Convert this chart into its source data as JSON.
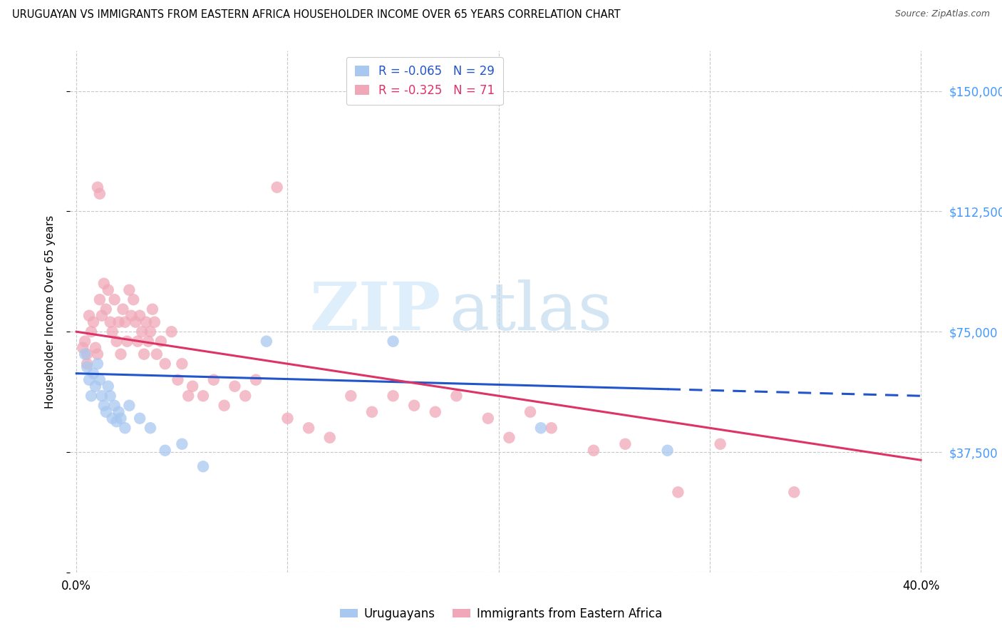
{
  "title": "URUGUAYAN VS IMMIGRANTS FROM EASTERN AFRICA HOUSEHOLDER INCOME OVER 65 YEARS CORRELATION CHART",
  "source": "Source: ZipAtlas.com",
  "ylabel": "Householder Income Over 65 years",
  "legend_blue_R": "R = -0.065",
  "legend_blue_N": "N = 29",
  "legend_pink_R": "R = -0.325",
  "legend_pink_N": "N = 71",
  "blue_color": "#a8c8f0",
  "pink_color": "#f0a8b8",
  "blue_line_color": "#2255cc",
  "pink_line_color": "#dd3366",
  "blue_label": "Uruguayans",
  "pink_label": "Immigrants from Eastern Africa",
  "blue_scatter_x": [
    0.4,
    0.5,
    0.6,
    0.7,
    0.8,
    0.9,
    1.0,
    1.1,
    1.2,
    1.3,
    1.4,
    1.5,
    1.6,
    1.7,
    1.8,
    1.9,
    2.0,
    2.1,
    2.3,
    2.5,
    3.0,
    3.5,
    4.2,
    5.0,
    6.0,
    9.0,
    15.0,
    22.0,
    28.0
  ],
  "blue_scatter_y": [
    68000,
    64000,
    60000,
    55000,
    62000,
    58000,
    65000,
    60000,
    55000,
    52000,
    50000,
    58000,
    55000,
    48000,
    52000,
    47000,
    50000,
    48000,
    45000,
    52000,
    48000,
    45000,
    38000,
    40000,
    33000,
    72000,
    72000,
    45000,
    38000
  ],
  "pink_scatter_x": [
    0.3,
    0.4,
    0.5,
    0.5,
    0.6,
    0.7,
    0.8,
    0.9,
    1.0,
    1.0,
    1.1,
    1.2,
    1.3,
    1.4,
    1.5,
    1.6,
    1.7,
    1.8,
    1.9,
    2.0,
    2.1,
    2.2,
    2.3,
    2.4,
    2.5,
    2.6,
    2.7,
    2.8,
    2.9,
    3.0,
    3.1,
    3.2,
    3.3,
    3.4,
    3.5,
    3.6,
    3.7,
    3.8,
    4.0,
    4.2,
    4.5,
    4.8,
    5.0,
    5.3,
    5.5,
    6.0,
    6.5,
    7.0,
    7.5,
    8.0,
    8.5,
    9.5,
    10.0,
    11.0,
    12.0,
    13.0,
    14.0,
    15.0,
    16.0,
    17.0,
    18.0,
    19.5,
    20.5,
    21.5,
    22.5,
    24.5,
    26.0,
    28.5,
    30.5,
    34.0,
    1.1
  ],
  "pink_scatter_y": [
    70000,
    72000,
    68000,
    65000,
    80000,
    75000,
    78000,
    70000,
    68000,
    120000,
    85000,
    80000,
    90000,
    82000,
    88000,
    78000,
    75000,
    85000,
    72000,
    78000,
    68000,
    82000,
    78000,
    72000,
    88000,
    80000,
    85000,
    78000,
    72000,
    80000,
    75000,
    68000,
    78000,
    72000,
    75000,
    82000,
    78000,
    68000,
    72000,
    65000,
    75000,
    60000,
    65000,
    55000,
    58000,
    55000,
    60000,
    52000,
    58000,
    55000,
    60000,
    120000,
    48000,
    45000,
    42000,
    55000,
    50000,
    55000,
    52000,
    50000,
    55000,
    48000,
    42000,
    50000,
    45000,
    38000,
    40000,
    25000,
    40000,
    25000,
    118000
  ],
  "blue_line_x0": 0,
  "blue_line_y0": 62000,
  "blue_line_x1": 40,
  "blue_line_y1": 55000,
  "blue_solid_end": 28,
  "pink_line_x0": 0,
  "pink_line_y0": 75000,
  "pink_line_x1": 40,
  "pink_line_y1": 35000,
  "ylim": [
    0,
    162500
  ],
  "xlim": [
    -0.3,
    41
  ],
  "ytick_vals": [
    0,
    37500,
    75000,
    112500,
    150000
  ],
  "ytick_labels": [
    "",
    "$37,500",
    "$75,000",
    "$112,500",
    "$150,000"
  ],
  "xtick_vals": [
    0,
    10,
    20,
    30,
    40
  ],
  "xtick_left_label": "0.0%",
  "xtick_right_label": "40.0%",
  "grid_color": "#c8c8c8",
  "background_color": "#ffffff"
}
